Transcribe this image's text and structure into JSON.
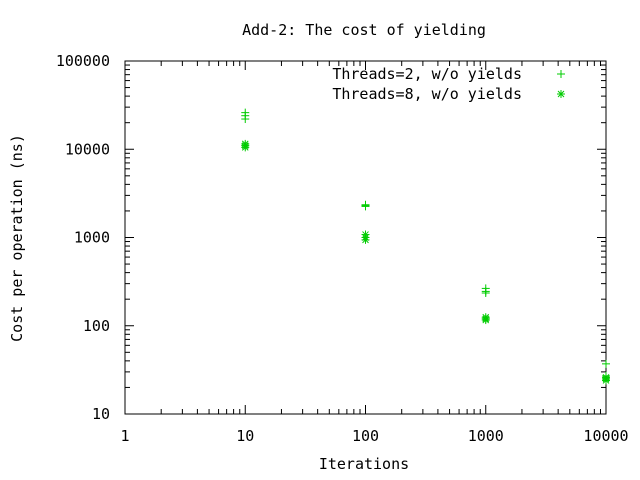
{
  "chart_data": {
    "type": "scatter",
    "title": "Add-2: The cost of yielding",
    "xlabel": "Iterations",
    "ylabel": "Cost per operation (ns)",
    "x_scale": "log",
    "y_scale": "log",
    "xlim": [
      1,
      10000
    ],
    "ylim": [
      10,
      100000
    ],
    "x_ticks": [
      "1",
      "10",
      "100",
      "1000",
      "10000"
    ],
    "y_ticks": [
      "10",
      "100",
      "1000",
      "10000",
      "100000"
    ],
    "grid": false,
    "legend_position": "top-right",
    "series": [
      {
        "name": "Threads=2, w/o yields",
        "marker": "plus",
        "color": "#00cc00",
        "points": [
          [
            10,
            26000
          ],
          [
            10,
            24000
          ],
          [
            10,
            22000
          ],
          [
            100,
            2350
          ],
          [
            100,
            2300
          ],
          [
            100,
            2250
          ],
          [
            1000,
            265
          ],
          [
            1000,
            245
          ],
          [
            1000,
            235
          ],
          [
            10000,
            37
          ],
          [
            10000,
            27
          ],
          [
            10000,
            25
          ]
        ]
      },
      {
        "name": "Threads=8, w/o yields",
        "marker": "star",
        "color": "#00cc00",
        "points": [
          [
            10,
            11500
          ],
          [
            10,
            11000
          ],
          [
            10,
            10500
          ],
          [
            100,
            1080
          ],
          [
            100,
            1000
          ],
          [
            100,
            940
          ],
          [
            1000,
            125
          ],
          [
            1000,
            120
          ],
          [
            1000,
            116
          ],
          [
            10000,
            26
          ],
          [
            10000,
            25
          ],
          [
            10000,
            24
          ]
        ]
      }
    ]
  }
}
